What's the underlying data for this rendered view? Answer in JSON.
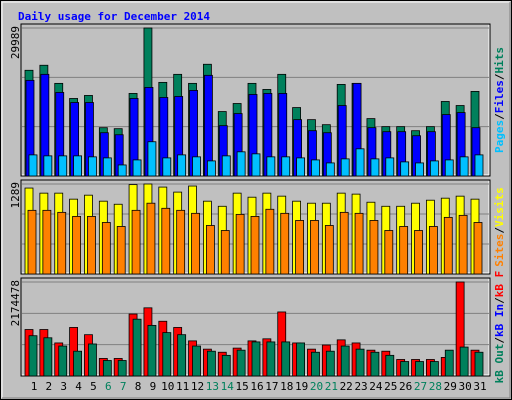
{
  "title": "Daily usage for December 2014",
  "title_color": "#0000ff",
  "legend_separator": "/",
  "days": [
    "1",
    "2",
    "3",
    "4",
    "5",
    "6",
    "7",
    "8",
    "9",
    "10",
    "11",
    "12",
    "13",
    "14",
    "15",
    "16",
    "17",
    "18",
    "19",
    "20",
    "21",
    "22",
    "23",
    "24",
    "25",
    "26",
    "27",
    "28",
    "29",
    "30",
    "31"
  ],
  "day_colors": [
    "#000000",
    "#000000",
    "#000000",
    "#000000",
    "#000000",
    "#00805c",
    "#00805c",
    "#000000",
    "#000000",
    "#000000",
    "#000000",
    "#000000",
    "#00805c",
    "#00805c",
    "#000000",
    "#000000",
    "#000000",
    "#000000",
    "#000000",
    "#00805c",
    "#00805c",
    "#000000",
    "#000000",
    "#000000",
    "#000000",
    "#000000",
    "#00805c",
    "#00805c",
    "#000000",
    "#000000",
    "#000000"
  ],
  "chart_data": [
    {
      "type": "bar",
      "ylim": [
        0,
        29989
      ],
      "yticks": [
        29989
      ],
      "grid": true,
      "series": [
        {
          "name": "Hits",
          "color": "#00805c",
          "values": [
            21420,
            22440,
            18770,
            15710,
            16320,
            9790,
            9590,
            16730,
            29989,
            18970,
            20600,
            18770,
            22640,
            13060,
            14690,
            18770,
            17540,
            20600,
            13870,
            11420,
            10400,
            18560,
            18770,
            11630,
            10000,
            10000,
            9180,
            10000,
            15100,
            14280,
            17140
          ]
        },
        {
          "name": "Files",
          "color": "#0000ff",
          "values": [
            19380,
            20600,
            16930,
            14890,
            14890,
            8770,
            8360,
            15710,
            17950,
            15910,
            16120,
            17340,
            20400,
            10200,
            12650,
            16520,
            16730,
            16730,
            11420,
            9180,
            8770,
            14280,
            18770,
            9790,
            8980,
            8980,
            8160,
            8980,
            12440,
            12850,
            9790
          ]
        },
        {
          "name": "Pages",
          "color": "#00c0ff",
          "values": [
            4280,
            4080,
            4080,
            4080,
            3880,
            3670,
            2240,
            3260,
            6940,
            3670,
            4280,
            3880,
            3060,
            4080,
            4900,
            4490,
            3880,
            3880,
            3670,
            3260,
            2650,
            3470,
            5510,
            3470,
            3670,
            2860,
            2650,
            3060,
            3260,
            3880,
            4280
          ]
        }
      ]
    },
    {
      "type": "bar",
      "ylim": [
        0,
        1289
      ],
      "yticks": [
        1289
      ],
      "grid": true,
      "series": [
        {
          "name": "Visits",
          "color": "#ffff00",
          "values": [
            1231,
            1158,
            1158,
            1072,
            1129,
            1043,
            999,
            1280,
            1289,
            1245,
            1173,
            1260,
            1043,
            970,
            1158,
            1100,
            1158,
            1115,
            1043,
            1014,
            1014,
            1158,
            1144,
            1028,
            970,
            970,
            1014,
            1057,
            1086,
            1115,
            1072
          ]
        },
        {
          "name": "Sites",
          "color": "#ff8000",
          "values": [
            912,
            912,
            883,
            825,
            825,
            738,
            681,
            912,
            1014,
            941,
            912,
            869,
            695,
            623,
            854,
            825,
            927,
            869,
            767,
            767,
            695,
            883,
            869,
            767,
            623,
            681,
            623,
            681,
            811,
            840,
            738
          ]
        }
      ]
    },
    {
      "type": "bar",
      "ylim": [
        0,
        2174478
      ],
      "yticks": [
        2174478
      ],
      "grid": true,
      "series": [
        {
          "name": "kB F",
          "color": "#ff0000",
          "values": [
            1075300,
            1075300,
            764600,
            1123100,
            955800,
            406200,
            406200,
            1433700,
            1577100,
            1266400,
            1123100,
            812400,
            621300,
            549600,
            645200,
            812400,
            860200,
            1481500,
            764600,
            621300,
            716900,
            836300,
            764600,
            597400,
            573500,
            382300,
            382300,
            382300,
            430100,
            2174478,
            597400
          ]
        },
        {
          "name": "kB In",
          "color": "#0000ff",
          "values": [
            0,
            0,
            0,
            0,
            0,
            0,
            0,
            0,
            0,
            0,
            0,
            0,
            0,
            0,
            0,
            0,
            0,
            0,
            0,
            0,
            0,
            0,
            0,
            0,
            0,
            0,
            0,
            0,
            0,
            0,
            0
          ]
        },
        {
          "name": "kB Out",
          "color": "#00805c",
          "values": [
            931900,
            884100,
            693000,
            573500,
            740700,
            358400,
            358400,
            1314200,
            1170900,
            1003600,
            955800,
            693000,
            573500,
            477900,
            597400,
            788500,
            788500,
            788500,
            764600,
            549600,
            573500,
            693000,
            621300,
            549600,
            477900,
            334500,
            334500,
            334500,
            597400,
            669100,
            549600
          ]
        }
      ]
    }
  ]
}
